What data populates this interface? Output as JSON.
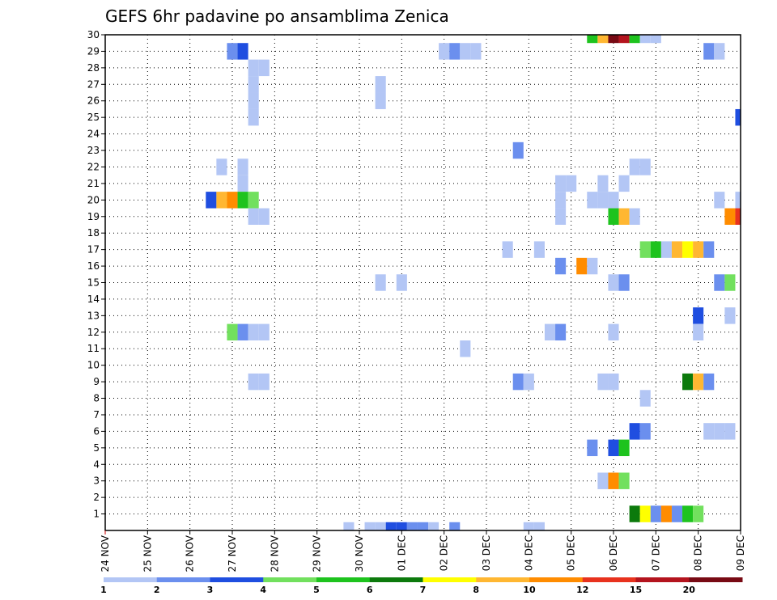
{
  "chart_data": {
    "type": "heatmap",
    "title": "GEFS 6hr padavine po ansamblima Zenica",
    "xlabel": "",
    "ylabel": "",
    "x_tick_labels": [
      "24 NOV",
      "25 NOV",
      "26 NOV",
      "27 NOV",
      "28 NOV",
      "29 NOV",
      "30 NOV",
      "01 DEC",
      "02 DEC",
      "03 DEC",
      "04 DEC",
      "05 DEC",
      "06 DEC",
      "07 DEC",
      "08 DEC",
      "09 DEC"
    ],
    "xlim": [
      0,
      60
    ],
    "y_tick_labels": [
      "1",
      "2",
      "3",
      "4",
      "5",
      "6",
      "7",
      "8",
      "9",
      "10",
      "11",
      "12",
      "13",
      "14",
      "15",
      "16",
      "17",
      "18",
      "19",
      "20",
      "21",
      "22",
      "23",
      "24",
      "25",
      "26",
      "27",
      "28",
      "29",
      "30"
    ],
    "ylim": [
      0,
      30
    ],
    "grid": true,
    "legend_placement": "bottom",
    "colorbar": {
      "labels": [
        "1",
        "2",
        "3",
        "4",
        "5",
        "6",
        "7",
        "8",
        "10",
        "12",
        "15",
        "20"
      ],
      "colors": [
        "#b3c6f5",
        "#6b8fee",
        "#1f4ee0",
        "#72e05e",
        "#1ec31e",
        "#0c7a0c",
        "#ffff00",
        "#ffb732",
        "#ff8c00",
        "#e8321e",
        "#b4141e",
        "#780a14"
      ]
    },
    "cells": [
      {
        "member": 30,
        "t": 46,
        "level": 5
      },
      {
        "member": 30,
        "t": 47,
        "level": 8
      },
      {
        "member": 30,
        "t": 48,
        "level": 12
      },
      {
        "member": 30,
        "t": 49,
        "level": 11
      },
      {
        "member": 30,
        "t": 50,
        "level": 5
      },
      {
        "member": 30,
        "t": 51,
        "level": 1
      },
      {
        "member": 30,
        "t": 52,
        "level": 1
      },
      {
        "member": 29,
        "t": 12,
        "level": 2
      },
      {
        "member": 29,
        "t": 13,
        "level": 3
      },
      {
        "member": 29,
        "t": 32,
        "level": 1
      },
      {
        "member": 29,
        "t": 33,
        "level": 2
      },
      {
        "member": 29,
        "t": 34,
        "level": 1
      },
      {
        "member": 29,
        "t": 35,
        "level": 1
      },
      {
        "member": 29,
        "t": 57,
        "level": 2
      },
      {
        "member": 29,
        "t": 58,
        "level": 1
      },
      {
        "member": 28,
        "t": 14,
        "level": 1
      },
      {
        "member": 28,
        "t": 15,
        "level": 1
      },
      {
        "member": 27,
        "t": 14,
        "level": 1
      },
      {
        "member": 27,
        "t": 26,
        "level": 1
      },
      {
        "member": 26,
        "t": 14,
        "level": 1
      },
      {
        "member": 26,
        "t": 26,
        "level": 1
      },
      {
        "member": 25,
        "t": 14,
        "level": 1
      },
      {
        "member": 25,
        "t": 60,
        "level": 3
      },
      {
        "member": 23,
        "t": 39,
        "level": 2
      },
      {
        "member": 22,
        "t": 11,
        "level": 1
      },
      {
        "member": 22,
        "t": 13,
        "level": 1
      },
      {
        "member": 22,
        "t": 50,
        "level": 1
      },
      {
        "member": 22,
        "t": 51,
        "level": 1
      },
      {
        "member": 21,
        "t": 13,
        "level": 1
      },
      {
        "member": 21,
        "t": 43,
        "level": 1
      },
      {
        "member": 21,
        "t": 44,
        "level": 1
      },
      {
        "member": 21,
        "t": 47,
        "level": 1
      },
      {
        "member": 21,
        "t": 49,
        "level": 1
      },
      {
        "member": 20,
        "t": 10,
        "level": 3
      },
      {
        "member": 20,
        "t": 11,
        "level": 8
      },
      {
        "member": 20,
        "t": 12,
        "level": 9
      },
      {
        "member": 20,
        "t": 13,
        "level": 5
      },
      {
        "member": 20,
        "t": 14,
        "level": 4
      },
      {
        "member": 20,
        "t": 43,
        "level": 1
      },
      {
        "member": 20,
        "t": 46,
        "level": 1
      },
      {
        "member": 20,
        "t": 47,
        "level": 1
      },
      {
        "member": 20,
        "t": 48,
        "level": 1
      },
      {
        "member": 20,
        "t": 58,
        "level": 1
      },
      {
        "member": 20,
        "t": 60,
        "level": 1
      },
      {
        "member": 19,
        "t": 14,
        "level": 1
      },
      {
        "member": 19,
        "t": 15,
        "level": 1
      },
      {
        "member": 19,
        "t": 43,
        "level": 1
      },
      {
        "member": 19,
        "t": 48,
        "level": 5
      },
      {
        "member": 19,
        "t": 49,
        "level": 8
      },
      {
        "member": 19,
        "t": 50,
        "level": 1
      },
      {
        "member": 19,
        "t": 59,
        "level": 9
      },
      {
        "member": 19,
        "t": 60,
        "level": 10
      },
      {
        "member": 17,
        "t": 38,
        "level": 1
      },
      {
        "member": 17,
        "t": 41,
        "level": 1
      },
      {
        "member": 17,
        "t": 51,
        "level": 4
      },
      {
        "member": 17,
        "t": 52,
        "level": 5
      },
      {
        "member": 17,
        "t": 53,
        "level": 1
      },
      {
        "member": 17,
        "t": 54,
        "level": 8
      },
      {
        "member": 17,
        "t": 55,
        "level": 7
      },
      {
        "member": 17,
        "t": 56,
        "level": 8
      },
      {
        "member": 17,
        "t": 57,
        "level": 2
      },
      {
        "member": 16,
        "t": 43,
        "level": 2
      },
      {
        "member": 16,
        "t": 45,
        "level": 9
      },
      {
        "member": 16,
        "t": 46,
        "level": 1
      },
      {
        "member": 15,
        "t": 26,
        "level": 1
      },
      {
        "member": 15,
        "t": 28,
        "level": 1
      },
      {
        "member": 15,
        "t": 48,
        "level": 1
      },
      {
        "member": 15,
        "t": 49,
        "level": 2
      },
      {
        "member": 15,
        "t": 58,
        "level": 2
      },
      {
        "member": 15,
        "t": 59,
        "level": 4
      },
      {
        "member": 13,
        "t": 56,
        "level": 3
      },
      {
        "member": 13,
        "t": 59,
        "level": 1
      },
      {
        "member": 12,
        "t": 12,
        "level": 4
      },
      {
        "member": 12,
        "t": 13,
        "level": 2
      },
      {
        "member": 12,
        "t": 14,
        "level": 1
      },
      {
        "member": 12,
        "t": 15,
        "level": 1
      },
      {
        "member": 12,
        "t": 42,
        "level": 1
      },
      {
        "member": 12,
        "t": 43,
        "level": 2
      },
      {
        "member": 12,
        "t": 48,
        "level": 1
      },
      {
        "member": 12,
        "t": 56,
        "level": 1
      },
      {
        "member": 11,
        "t": 34,
        "level": 1
      },
      {
        "member": 9,
        "t": 14,
        "level": 1
      },
      {
        "member": 9,
        "t": 15,
        "level": 1
      },
      {
        "member": 9,
        "t": 39,
        "level": 2
      },
      {
        "member": 9,
        "t": 40,
        "level": 1
      },
      {
        "member": 9,
        "t": 47,
        "level": 1
      },
      {
        "member": 9,
        "t": 48,
        "level": 1
      },
      {
        "member": 9,
        "t": 55,
        "level": 6
      },
      {
        "member": 9,
        "t": 56,
        "level": 8
      },
      {
        "member": 9,
        "t": 57,
        "level": 2
      },
      {
        "member": 8,
        "t": 51,
        "level": 1
      },
      {
        "member": 6,
        "t": 50,
        "level": 3
      },
      {
        "member": 6,
        "t": 51,
        "level": 2
      },
      {
        "member": 6,
        "t": 57,
        "level": 1
      },
      {
        "member": 6,
        "t": 58,
        "level": 1
      },
      {
        "member": 6,
        "t": 59,
        "level": 1
      },
      {
        "member": 5,
        "t": 46,
        "level": 2
      },
      {
        "member": 5,
        "t": 48,
        "level": 3
      },
      {
        "member": 5,
        "t": 49,
        "level": 5
      },
      {
        "member": 3,
        "t": 47,
        "level": 1
      },
      {
        "member": 3,
        "t": 48,
        "level": 9
      },
      {
        "member": 3,
        "t": 49,
        "level": 4
      },
      {
        "member": 1,
        "t": 50,
        "level": 6
      },
      {
        "member": 1,
        "t": 51,
        "level": 7
      },
      {
        "member": 1,
        "t": 52,
        "level": 2
      },
      {
        "member": 1,
        "t": 53,
        "level": 9
      },
      {
        "member": 1,
        "t": 54,
        "level": 2
      },
      {
        "member": 1,
        "t": 55,
        "level": 5
      },
      {
        "member": 1,
        "t": 56,
        "level": 4
      },
      {
        "member": 0,
        "t": 23,
        "level": 1
      },
      {
        "member": 0,
        "t": 25,
        "level": 1
      },
      {
        "member": 0,
        "t": 26,
        "level": 1
      },
      {
        "member": 0,
        "t": 27,
        "level": 3
      },
      {
        "member": 0,
        "t": 28,
        "level": 3
      },
      {
        "member": 0,
        "t": 29,
        "level": 2
      },
      {
        "member": 0,
        "t": 30,
        "level": 2
      },
      {
        "member": 0,
        "t": 31,
        "level": 1
      },
      {
        "member": 0,
        "t": 33,
        "level": 2
      },
      {
        "member": 0,
        "t": 40,
        "level": 1
      },
      {
        "member": 0,
        "t": 41,
        "level": 1
      }
    ]
  }
}
